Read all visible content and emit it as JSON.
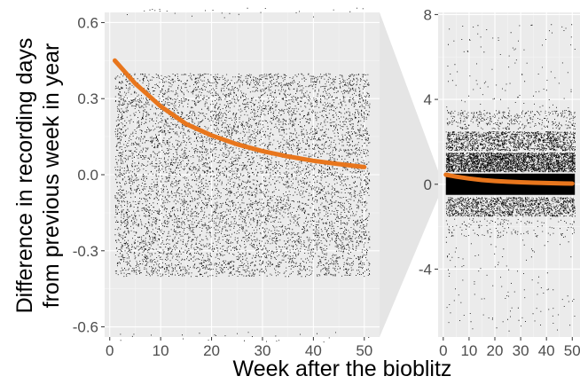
{
  "chart_data": [
    {
      "type": "scatter",
      "panel": "main",
      "xlabel": "Week after the bioblitz",
      "ylabel": [
        "Difference in recording days",
        "from previous week in year"
      ],
      "xlim": [
        -1,
        53
      ],
      "ylim": [
        -0.64,
        0.64
      ],
      "xticks": [
        0,
        10,
        20,
        30,
        40,
        50
      ],
      "yticks": [
        -0.6,
        -0.3,
        0.0,
        0.3,
        0.6
      ],
      "ytick_labels": [
        "-0.6",
        "-0.3",
        "0.0",
        "0.3",
        "0.6"
      ],
      "grid": true,
      "panel_background": "#ebebeb",
      "point_color": "#000000",
      "point_bands": [
        {
          "y_min": -0.4,
          "y_max": 0.4,
          "density": "dense"
        },
        {
          "y_min": 0.62,
          "y_max": 0.66,
          "density": "sparse"
        },
        {
          "y_min": -0.66,
          "y_max": -0.62,
          "density": "sparse"
        }
      ],
      "trend": {
        "color": "#e8761d",
        "x": [
          1,
          5,
          10,
          15,
          20,
          25,
          30,
          35,
          40,
          45,
          50
        ],
        "y": [
          0.45,
          0.36,
          0.27,
          0.2,
          0.155,
          0.12,
          0.093,
          0.072,
          0.055,
          0.042,
          0.03
        ]
      }
    },
    {
      "type": "scatter",
      "panel": "zoom-out",
      "xlim": [
        -2,
        53
      ],
      "ylim": [
        -7.2,
        8.1
      ],
      "xticks": [
        0,
        10,
        20,
        30,
        40,
        50
      ],
      "yticks": [
        -4,
        0,
        4,
        8
      ],
      "ytick_labels": [
        "-4",
        "0",
        "4",
        "8"
      ],
      "grid": true,
      "panel_background": "#ebebeb",
      "point_color": "#000000",
      "point_bands": [
        {
          "y_min": -0.5,
          "y_max": 0.5,
          "density": "solid"
        },
        {
          "y_min": 0.6,
          "y_max": 1.5,
          "density": "very dense"
        },
        {
          "y_min": 1.6,
          "y_max": 2.5,
          "density": "dense"
        },
        {
          "y_min": 2.6,
          "y_max": 3.5,
          "density": "medium"
        },
        {
          "y_min": -1.5,
          "y_max": -0.6,
          "density": "dense"
        },
        {
          "y_min": -2.5,
          "y_max": -1.6,
          "density": "light"
        },
        {
          "y_min": 3.6,
          "y_max": 7.6,
          "density": "sparse"
        },
        {
          "y_min": -7.0,
          "y_max": -2.6,
          "density": "sparse"
        }
      ],
      "trend": {
        "color": "#e8761d",
        "x": [
          1,
          5,
          10,
          15,
          20,
          25,
          30,
          35,
          40,
          45,
          50
        ],
        "y": [
          0.45,
          0.36,
          0.27,
          0.2,
          0.155,
          0.12,
          0.093,
          0.072,
          0.055,
          0.042,
          0.03
        ]
      }
    }
  ],
  "colors": {
    "funnel": "#e5e5e5",
    "grid_major": "#ffffff",
    "grid_minor": "#f5f5f5",
    "tick_text": "#4d4d4d"
  }
}
